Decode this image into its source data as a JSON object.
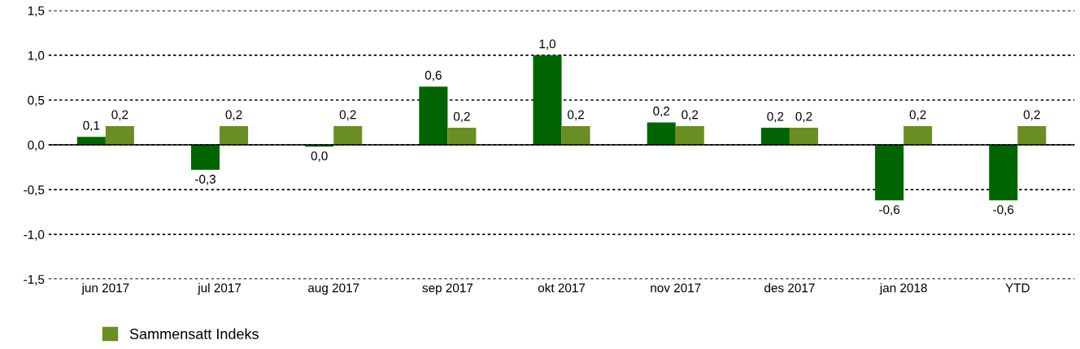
{
  "chart_data": {
    "type": "bar",
    "categories": [
      "jun 2017",
      "jul 2017",
      "aug 2017",
      "sep 2017",
      "okt 2017",
      "nov 2017",
      "des 2017",
      "jan 2018",
      "YTD"
    ],
    "series": [
      {
        "color": "#006400",
        "values": [
          0.09,
          -0.28,
          -0.02,
          0.65,
          1.0,
          0.25,
          0.19,
          -0.62,
          -0.62
        ],
        "value_labels": [
          "0,1",
          "-0,3",
          "0,0",
          "0,6",
          "1,0",
          "0,2",
          "0,2",
          "-0,6",
          "-0,6"
        ]
      },
      {
        "name": "Sammensatt Indeks",
        "color": "#6b8e23",
        "values": [
          0.21,
          0.21,
          0.21,
          0.19,
          0.21,
          0.21,
          0.19,
          0.21,
          0.21
        ],
        "value_labels": [
          "0,2",
          "0,2",
          "0,2",
          "0,2",
          "0,2",
          "0,2",
          "0,2",
          "0,2",
          "0,2"
        ]
      }
    ],
    "ylim": [
      -1.5,
      1.5
    ],
    "yticks": [
      {
        "value": -1.5,
        "label": "-1,5"
      },
      {
        "value": -1.0,
        "label": "-1,0"
      },
      {
        "value": -0.5,
        "label": "-0,5"
      },
      {
        "value": 0.0,
        "label": "0,0"
      },
      {
        "value": 0.5,
        "label": "0,5"
      },
      {
        "value": 1.0,
        "label": "1,0"
      },
      {
        "value": 1.5,
        "label": "1,5"
      }
    ],
    "grid": "y",
    "line_style": "dotted",
    "ref_lines": [
      {
        "axis": "y",
        "value": 0,
        "color": "#000000"
      }
    ],
    "legend": "bottom left"
  }
}
